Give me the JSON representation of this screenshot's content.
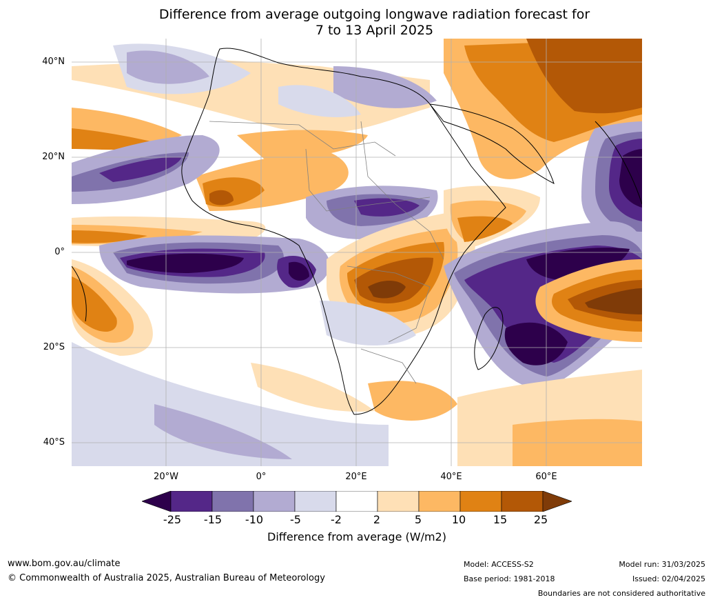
{
  "title": {
    "line1": "Difference from average outgoing longwave radiation forecast for",
    "line2": "7 to 13 April 2025"
  },
  "map": {
    "lat_labels": [
      "40°N",
      "20°N",
      "0°",
      "20°S",
      "40°S"
    ],
    "lon_labels": [
      "20°W",
      "0°",
      "20°E",
      "40°E",
      "60°E"
    ]
  },
  "colorbar": {
    "ticks": [
      "-25",
      "-15",
      "-10",
      "-5",
      "-2",
      "2",
      "5",
      "10",
      "15",
      "25"
    ],
    "colors": [
      "#2d004b",
      "#542788",
      "#8073ac",
      "#b2abd2",
      "#d8daeb",
      "#ffffff",
      "#fee0b6",
      "#fdb863",
      "#e08214",
      "#b35806",
      "#7f3b08"
    ],
    "label": "Difference from average (W/m2)"
  },
  "footer": {
    "website": "www.bom.gov.au/climate",
    "copyright": "© Commonwealth of Australia 2025, Australian Bureau of Meteorology",
    "model": "Model: ACCESS-S2",
    "base_period": "Base period: 1981-2018",
    "model_run": "Model run: 31/03/2025",
    "issued": "Issued: 02/04/2025",
    "disclaimer": "Boundaries are not considered authoritative"
  }
}
